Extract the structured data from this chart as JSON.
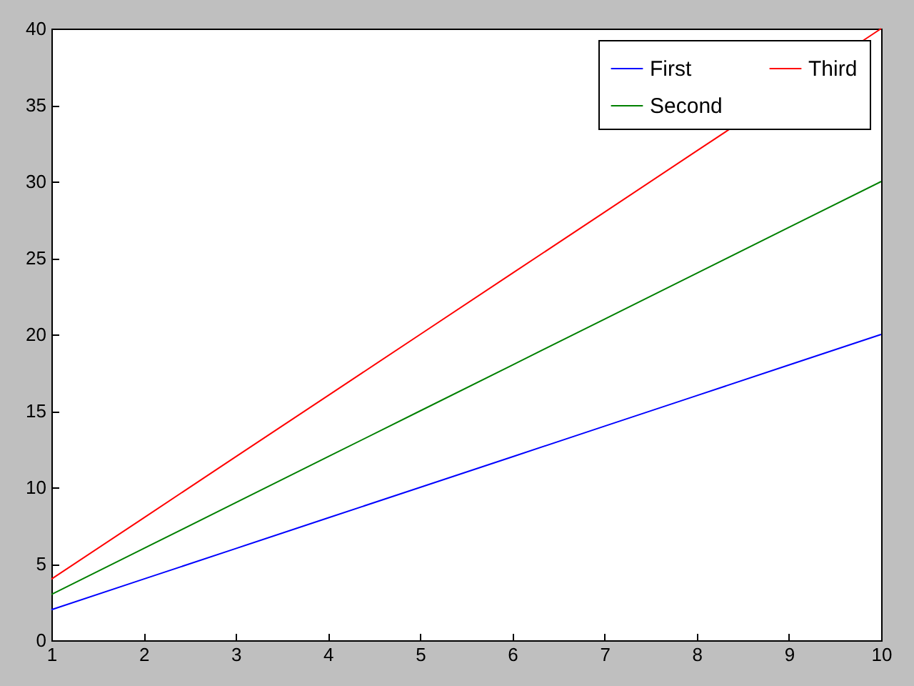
{
  "chart_data": {
    "type": "line",
    "x": [
      1,
      2,
      3,
      4,
      5,
      6,
      7,
      8,
      9,
      10
    ],
    "series": [
      {
        "name": "First",
        "color": "#0000ff",
        "values": [
          2,
          4,
          6,
          8,
          10,
          12,
          14,
          16,
          18,
          20
        ]
      },
      {
        "name": "Second",
        "color": "#008000",
        "values": [
          3,
          6,
          9,
          12,
          15,
          18,
          21,
          24,
          27,
          30
        ]
      },
      {
        "name": "Third",
        "color": "#ff0000",
        "x": [
          1,
          2,
          3,
          4,
          5,
          6,
          7,
          8,
          10
        ],
        "values": [
          4,
          8,
          12,
          16,
          20,
          24,
          28,
          32,
          40
        ]
      }
    ],
    "xlim": [
      1,
      10
    ],
    "xticks": [
      1,
      2,
      3,
      4,
      5,
      6,
      7,
      8,
      9,
      10
    ],
    "ylim": [
      0,
      40
    ],
    "yticks": [
      0,
      5,
      10,
      15,
      20,
      25,
      30,
      35,
      40
    ],
    "grid": false,
    "legend": "top right",
    "marker": "none",
    "line_style": "solid"
  }
}
